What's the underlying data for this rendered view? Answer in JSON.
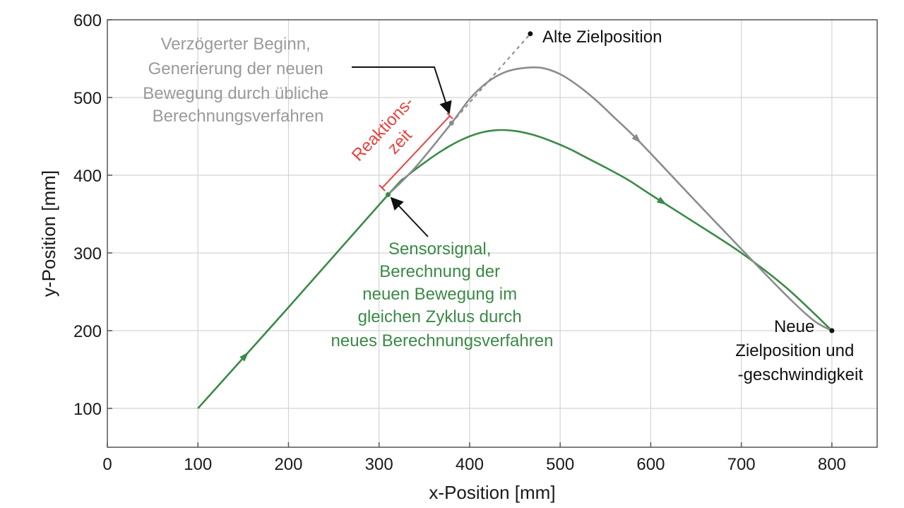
{
  "chart_data": {
    "type": "line",
    "title": "",
    "xlabel": "x-Position [mm]",
    "ylabel": "y-Position [mm]",
    "xlim": [
      0,
      850
    ],
    "ylim": [
      50,
      600
    ],
    "xticks": [
      0,
      100,
      200,
      300,
      400,
      500,
      600,
      700,
      800
    ],
    "yticks": [
      100,
      200,
      300,
      400,
      500,
      600
    ],
    "grid": true,
    "legend": "none",
    "series": [
      {
        "color": "#3a8a46",
        "points": [
          [
            100,
            100
          ],
          [
            200,
            230
          ],
          [
            310,
            375
          ],
          [
            330,
            398
          ],
          [
            350,
            416
          ],
          [
            370,
            432
          ],
          [
            390,
            445
          ],
          [
            410,
            454
          ],
          [
            430,
            458
          ],
          [
            450,
            457
          ],
          [
            470,
            452
          ],
          [
            490,
            444
          ],
          [
            510,
            434
          ],
          [
            530,
            422
          ],
          [
            550,
            410
          ],
          [
            575,
            394
          ],
          [
            600,
            375
          ],
          [
            650,
            338
          ],
          [
            700,
            300
          ],
          [
            750,
            255
          ],
          [
            800,
            200
          ]
        ]
      },
      {
        "color": "#8c8c8c",
        "points": [
          [
            310,
            375
          ],
          [
            340,
            410
          ],
          [
            380,
            467
          ],
          [
            400,
            498
          ],
          [
            420,
            520
          ],
          [
            440,
            533
          ],
          [
            460,
            538
          ],
          [
            480,
            538
          ],
          [
            500,
            530
          ],
          [
            520,
            515
          ],
          [
            540,
            496
          ],
          [
            560,
            474
          ],
          [
            580,
            452
          ],
          [
            600,
            428
          ],
          [
            650,
            366
          ],
          [
            700,
            305
          ],
          [
            750,
            245
          ],
          [
            780,
            213
          ],
          [
            800,
            200
          ]
        ]
      },
      {
        "color": "#8c8c8c",
        "dashed": true,
        "points": [
          [
            380,
            467
          ],
          [
            467,
            582
          ]
        ]
      }
    ],
    "markers": [
      {
        "x": 467,
        "y": 582,
        "color": "#111111"
      },
      {
        "x": 800,
        "y": 200,
        "color": "#111111"
      },
      {
        "x": 380,
        "y": 467,
        "color": "#8c8c8c"
      },
      {
        "x": 310,
        "y": 375,
        "color": "#3a8a46"
      }
    ],
    "annotations": {
      "old_target": "Alte Zielposition",
      "delayed_start": [
        "Verzögerter Beginn,",
        "Generierung der neuen",
        "Bewegung durch übliche",
        "Berechnungsverfahren"
      ],
      "reaction_time": [
        "Reaktions-",
        "zeit"
      ],
      "sensor_signal": [
        "Sensorsignal,",
        "Berechnung der",
        "neuen Bewegung im",
        "gleichen Zyklus durch",
        "neues Berechnungsverfahren"
      ],
      "new_target": [
        "Neue",
        "Zielposition und",
        "-geschwindigkeit"
      ]
    },
    "colors": {
      "green": "#3a8a46",
      "gray": "#8c8c8c",
      "gray_text": "#9a9a9a",
      "red": "#e8423c",
      "black": "#111111"
    }
  }
}
